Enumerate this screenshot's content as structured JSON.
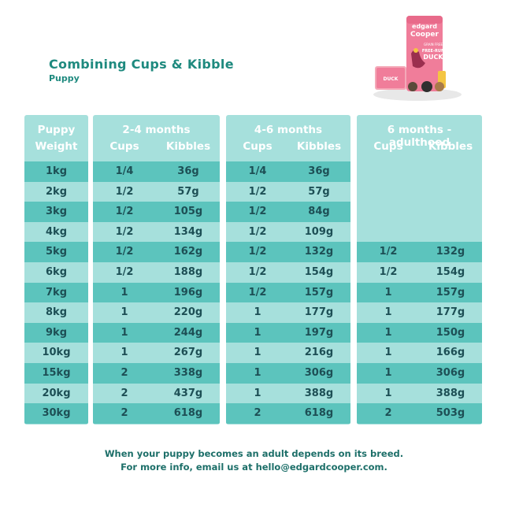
{
  "title": "Combining Cups & Kibble",
  "subtitle": "Puppy",
  "product": {
    "brand_line1": "edgard",
    "brand_line2": "Cooper",
    "bag_text_small": "GRAIN FREE",
    "bag_text_main": "FREE-RUN",
    "bag_text_flavor": "DUCK",
    "tray_text": "DUCK",
    "colors": {
      "bag": "#f07d9a",
      "tray": "#f4a9b8",
      "duck": "#9b2f4f"
    }
  },
  "weight_header": {
    "line1": "Puppy",
    "line2": "Weight"
  },
  "groups": [
    {
      "title": "2-4 months",
      "cups_label": "Cups",
      "kibbles_label": "Kibbles"
    },
    {
      "title": "4-6 months",
      "cups_label": "Cups",
      "kibbles_label": "Kibbles"
    },
    {
      "title": "6 months - adulthood",
      "cups_label": "Cups",
      "kibbles_label": "Kibbles"
    }
  ],
  "rows": [
    {
      "weight": "1kg",
      "g1": [
        "1/4",
        "36g"
      ],
      "g2": [
        "1/4",
        "36g"
      ],
      "g3": null
    },
    {
      "weight": "2kg",
      "g1": [
        "1/2",
        "57g"
      ],
      "g2": [
        "1/2",
        "57g"
      ],
      "g3": null
    },
    {
      "weight": "3kg",
      "g1": [
        "1/2",
        "105g"
      ],
      "g2": [
        "1/2",
        "84g"
      ],
      "g3": null
    },
    {
      "weight": "4kg",
      "g1": [
        "1/2",
        "134g"
      ],
      "g2": [
        "1/2",
        "109g"
      ],
      "g3": null
    },
    {
      "weight": "5kg",
      "g1": [
        "1/2",
        "162g"
      ],
      "g2": [
        "1/2",
        "132g"
      ],
      "g3": [
        "1/2",
        "132g"
      ]
    },
    {
      "weight": "6kg",
      "g1": [
        "1/2",
        "188g"
      ],
      "g2": [
        "1/2",
        "154g"
      ],
      "g3": [
        "1/2",
        "154g"
      ]
    },
    {
      "weight": "7kg",
      "g1": [
        "1",
        "196g"
      ],
      "g2": [
        "1/2",
        "157g"
      ],
      "g3": [
        "1",
        "157g"
      ]
    },
    {
      "weight": "8kg",
      "g1": [
        "1",
        "220g"
      ],
      "g2": [
        "1",
        "177g"
      ],
      "g3": [
        "1",
        "177g"
      ]
    },
    {
      "weight": "9kg",
      "g1": [
        "1",
        "244g"
      ],
      "g2": [
        "1",
        "197g"
      ],
      "g3": [
        "1",
        "150g"
      ]
    },
    {
      "weight": "10kg",
      "g1": [
        "1",
        "267g"
      ],
      "g2": [
        "1",
        "216g"
      ],
      "g3": [
        "1",
        "166g"
      ]
    },
    {
      "weight": "15kg",
      "g1": [
        "2",
        "338g"
      ],
      "g2": [
        "1",
        "306g"
      ],
      "g3": [
        "1",
        "306g"
      ]
    },
    {
      "weight": "20kg",
      "g1": [
        "2",
        "437g"
      ],
      "g2": [
        "1",
        "388g"
      ],
      "g3": [
        "1",
        "388g"
      ]
    },
    {
      "weight": "30kg",
      "g1": [
        "2",
        "618g"
      ],
      "g2": [
        "2",
        "618g"
      ],
      "g3": [
        "2",
        "503g"
      ]
    }
  ],
  "footer": {
    "line1": "When your puppy becomes an adult depends on its breed.",
    "line2": "For more info, email us at hello@edgardcooper.com."
  },
  "colors": {
    "title": "#1f8a7f",
    "header_bg": "#a6e0dc",
    "row_dark": "#5cc4bd",
    "row_light": "#a6e0dc",
    "cell_text": "#1d4f55"
  }
}
